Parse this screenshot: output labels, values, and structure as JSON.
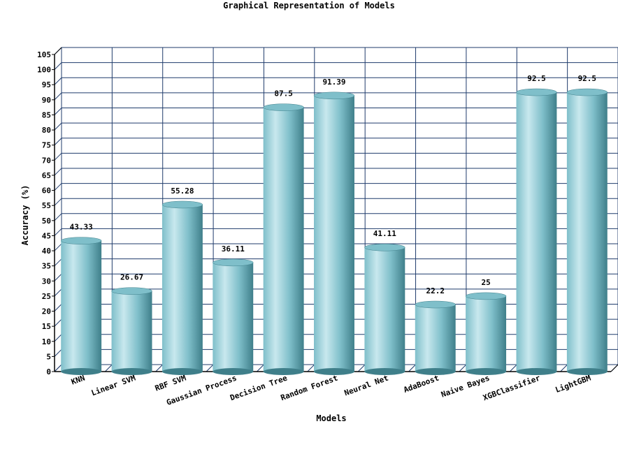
{
  "chart_data": {
    "type": "bar",
    "title": "Graphical Representation of Models",
    "xlabel": "Models",
    "ylabel": "Accuracy (%)",
    "ylim": [
      0,
      105
    ],
    "ytick_step": 5,
    "grid": true,
    "categories": [
      "KNN",
      "Linear SVM",
      "RBF SVM",
      "Gaussian Process",
      "Decision Tree",
      "Random Forest",
      "Neural Net",
      "AdaBoost",
      "Naive Bayes",
      "XGBClassifier",
      "LightGBM"
    ],
    "values": [
      43.33,
      26.67,
      55.28,
      36.11,
      87.5,
      91.39,
      41.11,
      22.2,
      25,
      92.5,
      92.5
    ],
    "data_labels": [
      "43.33",
      "26.67",
      "55.28",
      "36.11",
      "87.5",
      "91.39",
      "41.11",
      "22.2",
      "25",
      "92.5",
      "92.5"
    ],
    "colors": {
      "bar_light": "#c8e8ee",
      "bar_mid": "#7fbfca",
      "bar_dark": "#3f7f8a",
      "grid": "#1f3b6b"
    }
  }
}
